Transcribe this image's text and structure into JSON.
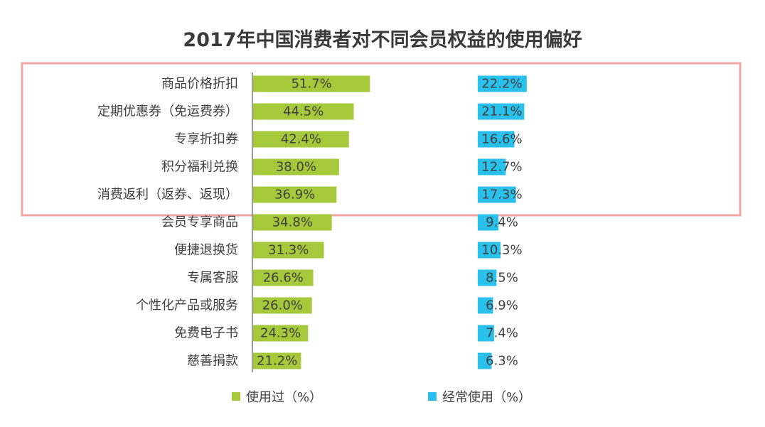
{
  "chart_data": {
    "type": "bar",
    "orientation": "horizontal",
    "title": "2017年中国消费者对不同会员权益的使用偏好",
    "categories": [
      "商品价格折扣",
      "定期优惠券（免运费券）",
      "专享折扣券",
      "积分福利兑换",
      "消费返利（返券、返现）",
      "会员专享商品",
      "便捷退换货",
      "专属客服",
      "个性化产品或服务",
      "免费电子书",
      "慈善捐款"
    ],
    "series": [
      {
        "name": "使用过（%）",
        "color": "#a5c93a",
        "values": [
          51.7,
          44.5,
          42.4,
          38.0,
          36.9,
          34.8,
          31.3,
          26.6,
          26.0,
          24.3,
          21.2
        ],
        "labels": [
          "51.7%",
          "44.5%",
          "42.4%",
          "38.0%",
          "36.9%",
          "34.8%",
          "31.3%",
          "26.6%",
          "26.0%",
          "24.3%",
          "21.2%"
        ]
      },
      {
        "name": "经常使用（%）",
        "color": "#29c0ec",
        "values": [
          22.2,
          21.1,
          16.6,
          12.7,
          17.3,
          9.4,
          10.3,
          8.5,
          6.9,
          7.4,
          6.3
        ],
        "labels": [
          "22.2%",
          "21.1%",
          "16.6%",
          "12.7%",
          "17.3%",
          "9.4%",
          "10.3%",
          "8.5%",
          "6.9%",
          "7.4%",
          "6.3%"
        ]
      }
    ],
    "highlight": {
      "from_index": 0,
      "to_index": 4,
      "color": "#f0a4a4"
    },
    "axis_color": "#7f7f7f",
    "legend": "bottom"
  }
}
